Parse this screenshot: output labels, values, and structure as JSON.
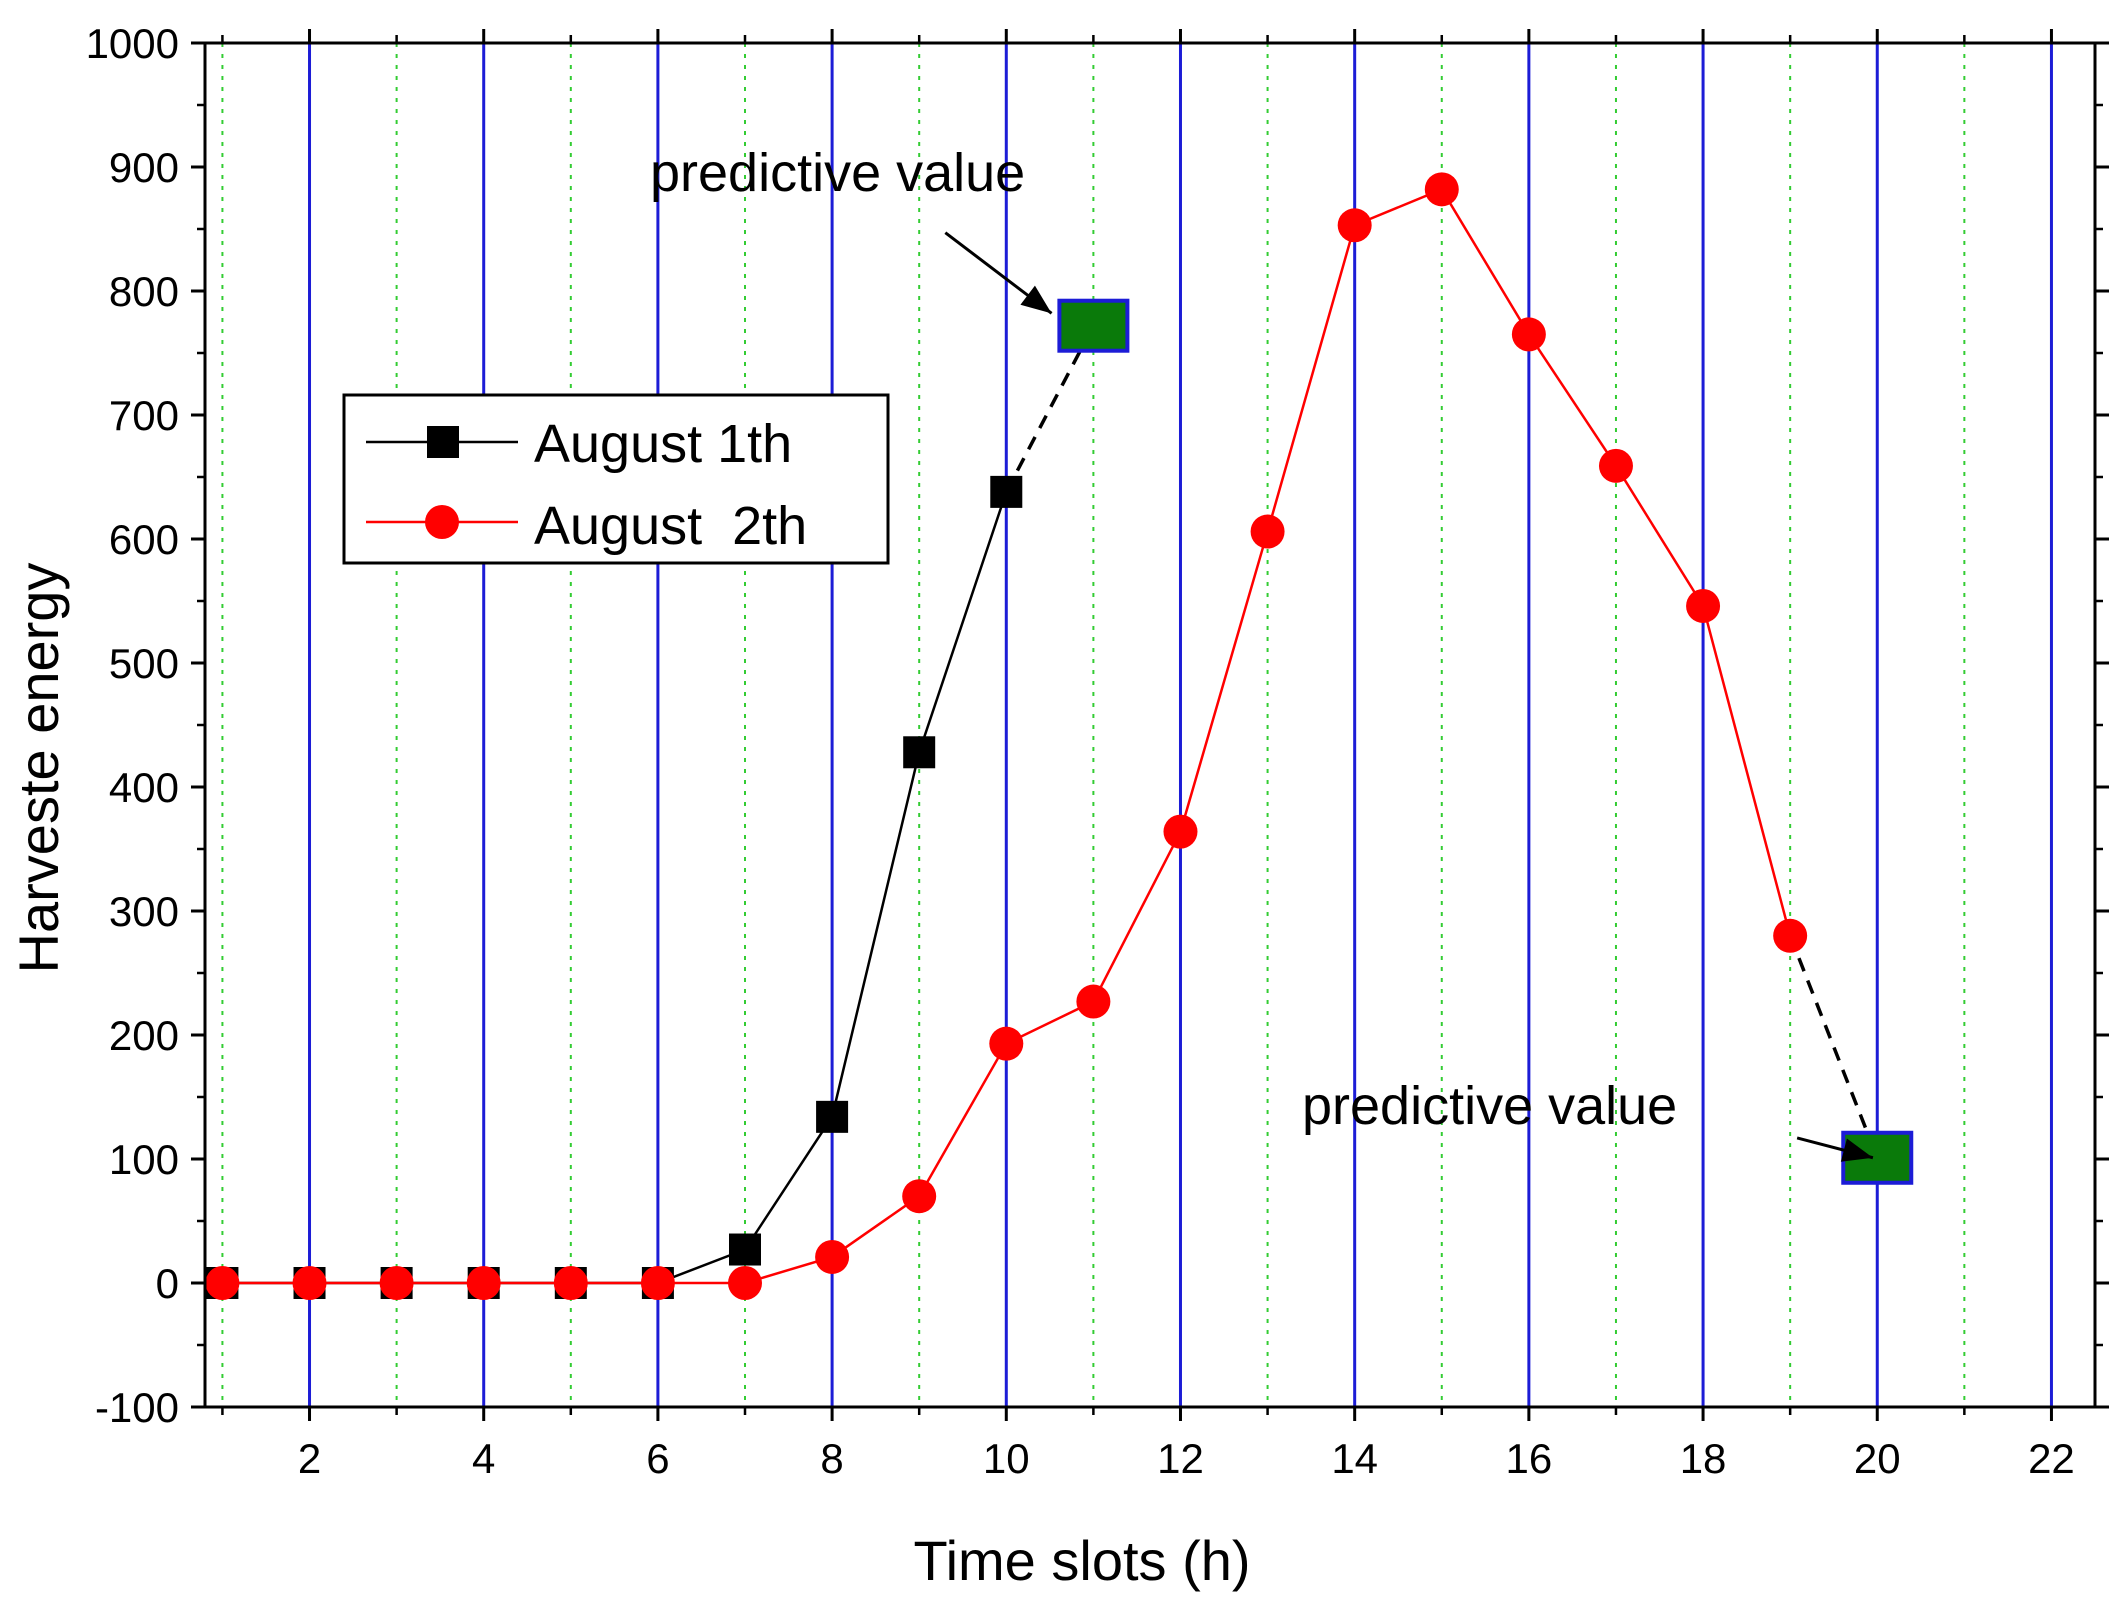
{
  "chart_data": {
    "type": "line",
    "title": "",
    "xlabel": "Time slots (h)",
    "ylabel": "Harveste energy",
    "xlim": [
      0.8,
      22.5
    ],
    "ylim": [
      -100,
      1000
    ],
    "x_ticks": [
      2,
      4,
      6,
      8,
      10,
      12,
      14,
      16,
      18,
      20,
      22
    ],
    "y_ticks": [
      -100,
      0,
      100,
      200,
      300,
      400,
      500,
      600,
      700,
      800,
      900,
      1000
    ],
    "x_tick_labels": [
      "2",
      "4",
      "6",
      "8",
      "10",
      "12",
      "14",
      "16",
      "18",
      "20",
      "22"
    ],
    "y_tick_labels": [
      "-100",
      "0",
      "100",
      "200",
      "300",
      "400",
      "500",
      "600",
      "700",
      "800",
      "900",
      "1000"
    ],
    "grid": {
      "major_x": [
        2,
        4,
        6,
        8,
        10,
        12,
        14,
        16,
        18,
        20,
        22
      ],
      "minor_x": [
        1,
        3,
        5,
        7,
        9,
        11,
        13,
        15,
        17,
        19,
        21
      ],
      "major_color": "#1c1cd6",
      "minor_color": "#33cc33"
    },
    "series": [
      {
        "name": "August 1th",
        "color": "#000000",
        "marker": "square",
        "x": [
          1,
          2,
          3,
          4,
          5,
          6,
          7,
          8,
          9,
          10
        ],
        "values": [
          0,
          0,
          0,
          0,
          0,
          0,
          27,
          134,
          428,
          638
        ]
      },
      {
        "name": "August  2th",
        "color": "#ff0000",
        "marker": "circle",
        "x": [
          1,
          2,
          3,
          4,
          5,
          6,
          7,
          8,
          9,
          10,
          11,
          12,
          13,
          14,
          15,
          16,
          17,
          18,
          19
        ],
        "values": [
          0,
          0,
          0,
          0,
          0,
          0,
          0,
          21,
          70,
          193,
          227,
          364,
          606,
          853,
          882,
          765,
          659,
          546,
          280
        ]
      }
    ],
    "predictions": [
      {
        "from": [
          10,
          638
        ],
        "to": [
          11,
          772
        ],
        "label": "predictive value",
        "fill": "#0a7a0a",
        "edge": "#1c1cd6"
      },
      {
        "from": [
          19,
          280
        ],
        "to": [
          20,
          101
        ],
        "label": "predictive value",
        "fill": "#0a7a0a",
        "edge": "#1c1cd6"
      }
    ],
    "legend_position": "upper-left"
  }
}
